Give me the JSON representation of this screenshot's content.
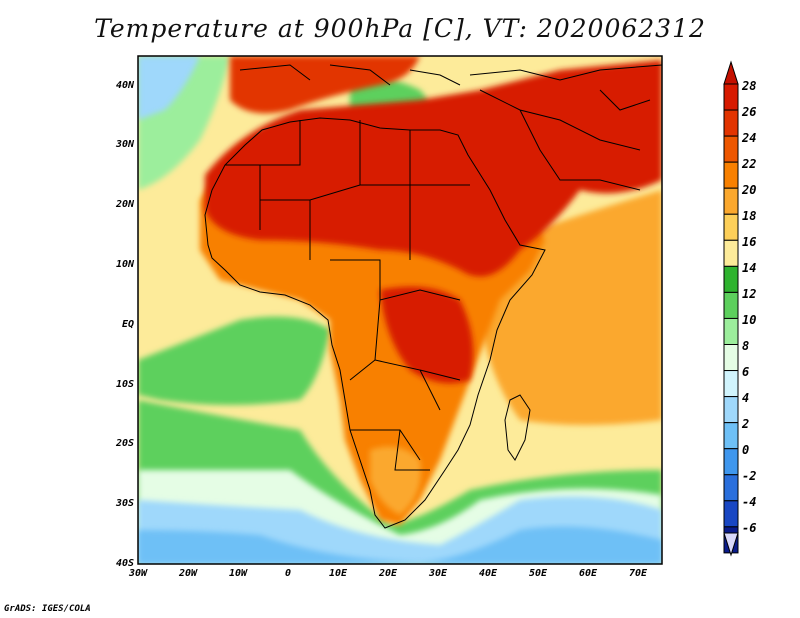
{
  "title": "Temperature at 900hPa [C], VT: 2020062312",
  "credit": "GrADS: IGES/COLA",
  "map": {
    "variable": "Temperature at 900hPa",
    "units": "C",
    "valid_time": "2020062312",
    "lon_labels": [
      "30W",
      "20W",
      "10W",
      "0",
      "10E",
      "20E",
      "30E",
      "40E",
      "50E",
      "60E",
      "70E"
    ],
    "lat_labels": [
      "40N",
      "30N",
      "20N",
      "10N",
      "EQ",
      "10S",
      "20S",
      "30S",
      "40S"
    ]
  },
  "colorbar": {
    "labels": [
      "28",
      "26",
      "24",
      "22",
      "20",
      "18",
      "16",
      "14",
      "12",
      "10",
      "8",
      "6",
      "4",
      "2",
      "0",
      "-2",
      "-4",
      "-6"
    ],
    "colors": [
      "#d71a00",
      "#e23400",
      "#ee5700",
      "#f88000",
      "#fba82e",
      "#fdcf59",
      "#fdeb9a",
      "#2fb32f",
      "#5dd05d",
      "#9cee9c",
      "#e5fde5",
      "#d1f4fd",
      "#9fd8fb",
      "#6ec0f6",
      "#3f97ee",
      "#2a6fdc",
      "#1947c3",
      "#0a1b8a"
    ]
  }
}
